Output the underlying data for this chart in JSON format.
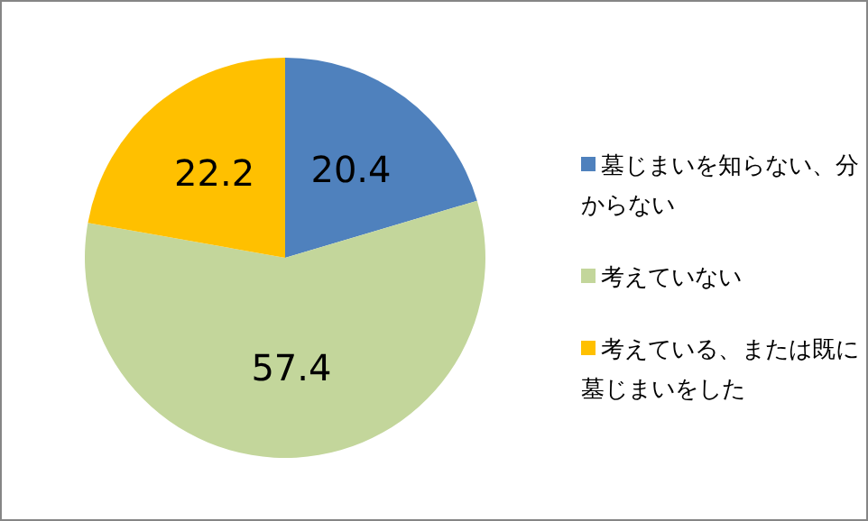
{
  "chart_data": {
    "type": "pie",
    "categories": [
      "墓じまいを知らない、分からない",
      "考えていない",
      "考えている、または既に墓じまいをした"
    ],
    "values": [
      20.4,
      57.4,
      22.2
    ],
    "colors": [
      "#4f81bd",
      "#c3d69b",
      "#ffc000"
    ],
    "data_labels": true,
    "legend": "right"
  }
}
